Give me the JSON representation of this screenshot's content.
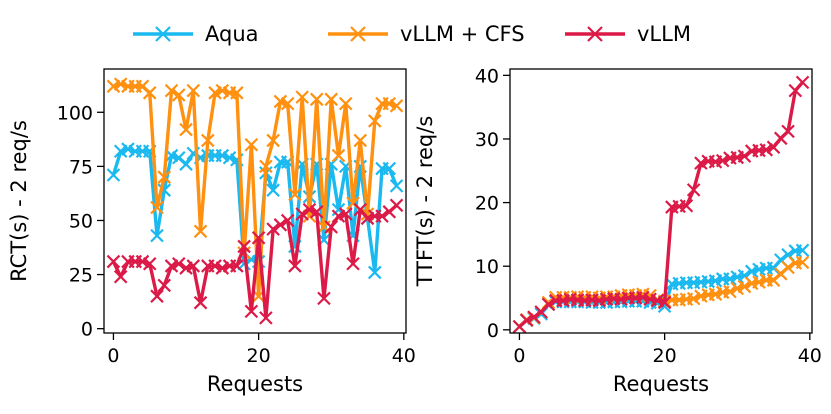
{
  "colors": {
    "Aqua": "#1ab9f0",
    "vLLM + CFS": "#ff9010",
    "vLLM": "#dc1a48"
  },
  "legend": {
    "position": "top-center",
    "items": [
      {
        "name": "Aqua",
        "color": "#1ab9f0",
        "marker": "x"
      },
      {
        "name": "vLLM + CFS",
        "color": "#ff9010",
        "marker": "x"
      },
      {
        "name": "vLLM",
        "color": "#dc1a48",
        "marker": "x"
      }
    ]
  },
  "chart_data": [
    {
      "type": "line",
      "xlabel": "Requests",
      "ylabel": "RCT(s) - 2 req/s",
      "xlim": [
        -1.3,
        40.3
      ],
      "ylim": [
        -2,
        120
      ],
      "xticks": [
        0,
        20,
        40
      ],
      "yticks": [
        0,
        25,
        50,
        75,
        100
      ],
      "grid": false,
      "x": [
        0,
        1,
        2,
        3,
        4,
        5,
        6,
        7,
        8,
        9,
        10,
        11,
        12,
        13,
        14,
        15,
        16,
        17,
        18,
        19,
        20,
        21,
        22,
        23,
        24,
        25,
        26,
        27,
        28,
        29,
        30,
        31,
        32,
        33,
        34,
        35,
        36,
        37,
        38,
        39
      ],
      "series": [
        {
          "name": "Aqua",
          "values": [
            71,
            82,
            83,
            82,
            82,
            82,
            43,
            64,
            80,
            79,
            76,
            81,
            79,
            80,
            80,
            80,
            79,
            78,
            30,
            32,
            31,
            72,
            64,
            77,
            77,
            38,
            76,
            61,
            76,
            41,
            76,
            55,
            75,
            43,
            75,
            51,
            26,
            74,
            74,
            66
          ]
        },
        {
          "name": "vLLM + CFS",
          "values": [
            112,
            113,
            112,
            112,
            112,
            109,
            56,
            70,
            110,
            108,
            92,
            110,
            45,
            87,
            109,
            110,
            109,
            109,
            35,
            85,
            15,
            75,
            87,
            105,
            104,
            62,
            107,
            52,
            106,
            47,
            106,
            80,
            104,
            58,
            87,
            53,
            96,
            104,
            104,
            103
          ]
        },
        {
          "name": "vLLM",
          "values": [
            31,
            24,
            31,
            31,
            31,
            30,
            15,
            20,
            29,
            30,
            28,
            29,
            12,
            29,
            29,
            28,
            29,
            29,
            38,
            8,
            42,
            5,
            46,
            48,
            50,
            29,
            53,
            55,
            54,
            14,
            47,
            52,
            53,
            30,
            55,
            51,
            52,
            52,
            54,
            57
          ]
        }
      ]
    },
    {
      "type": "line",
      "xlabel": "Requests",
      "ylabel": "TTFT(s) - 2 req/s",
      "xlim": [
        -1.3,
        40.3
      ],
      "ylim": [
        -0.5,
        41
      ],
      "xticks": [
        0,
        20,
        40
      ],
      "yticks": [
        0,
        10,
        20,
        30,
        40
      ],
      "grid": false,
      "x": [
        0,
        1,
        2,
        3,
        4,
        5,
        6,
        7,
        8,
        9,
        10,
        11,
        12,
        13,
        14,
        15,
        16,
        17,
        18,
        19,
        20,
        21,
        22,
        23,
        24,
        25,
        26,
        27,
        28,
        29,
        30,
        31,
        32,
        33,
        34,
        35,
        36,
        37,
        38,
        39
      ],
      "series": [
        {
          "name": "Aqua",
          "values": [
            0.5,
            1.5,
            1.8,
            2.5,
            4.0,
            4.4,
            4.4,
            4.4,
            4.4,
            4.4,
            4.3,
            4.3,
            4.3,
            4.4,
            4.4,
            4.5,
            4.5,
            4.5,
            4.3,
            4.2,
            3.7,
            7.2,
            7.3,
            7.4,
            7.4,
            7.5,
            7.6,
            7.7,
            8.0,
            8.0,
            8.3,
            8.5,
            9.2,
            9.5,
            9.7,
            9.7,
            11.0,
            11.8,
            12.4,
            12.5
          ]
        },
        {
          "name": "vLLM + CFS",
          "values": [
            0.5,
            1.6,
            1.9,
            2.8,
            4.3,
            5.1,
            5.1,
            5.1,
            5.2,
            5.1,
            5.2,
            5.0,
            5.2,
            5.2,
            5.4,
            5.5,
            5.4,
            5.6,
            5.4,
            4.7,
            4.5,
            4.7,
            4.7,
            4.8,
            4.9,
            5.3,
            5.5,
            5.6,
            5.9,
            6.0,
            6.5,
            6.8,
            7.3,
            7.5,
            7.8,
            7.8,
            8.8,
            9.8,
            10.5,
            10.6
          ]
        },
        {
          "name": "vLLM",
          "values": [
            0.5,
            1.5,
            2.0,
            2.8,
            4.0,
            4.6,
            4.6,
            4.8,
            4.7,
            4.6,
            4.7,
            4.6,
            4.8,
            4.9,
            4.8,
            5.0,
            5.0,
            5.1,
            4.8,
            4.6,
            4.3,
            19.3,
            19.4,
            19.5,
            22.0,
            26.2,
            26.5,
            26.4,
            26.6,
            27.0,
            27.1,
            27.3,
            28.1,
            28.2,
            28.3,
            28.7,
            30.1,
            31.2,
            37.6,
            38.9
          ]
        }
      ]
    }
  ]
}
